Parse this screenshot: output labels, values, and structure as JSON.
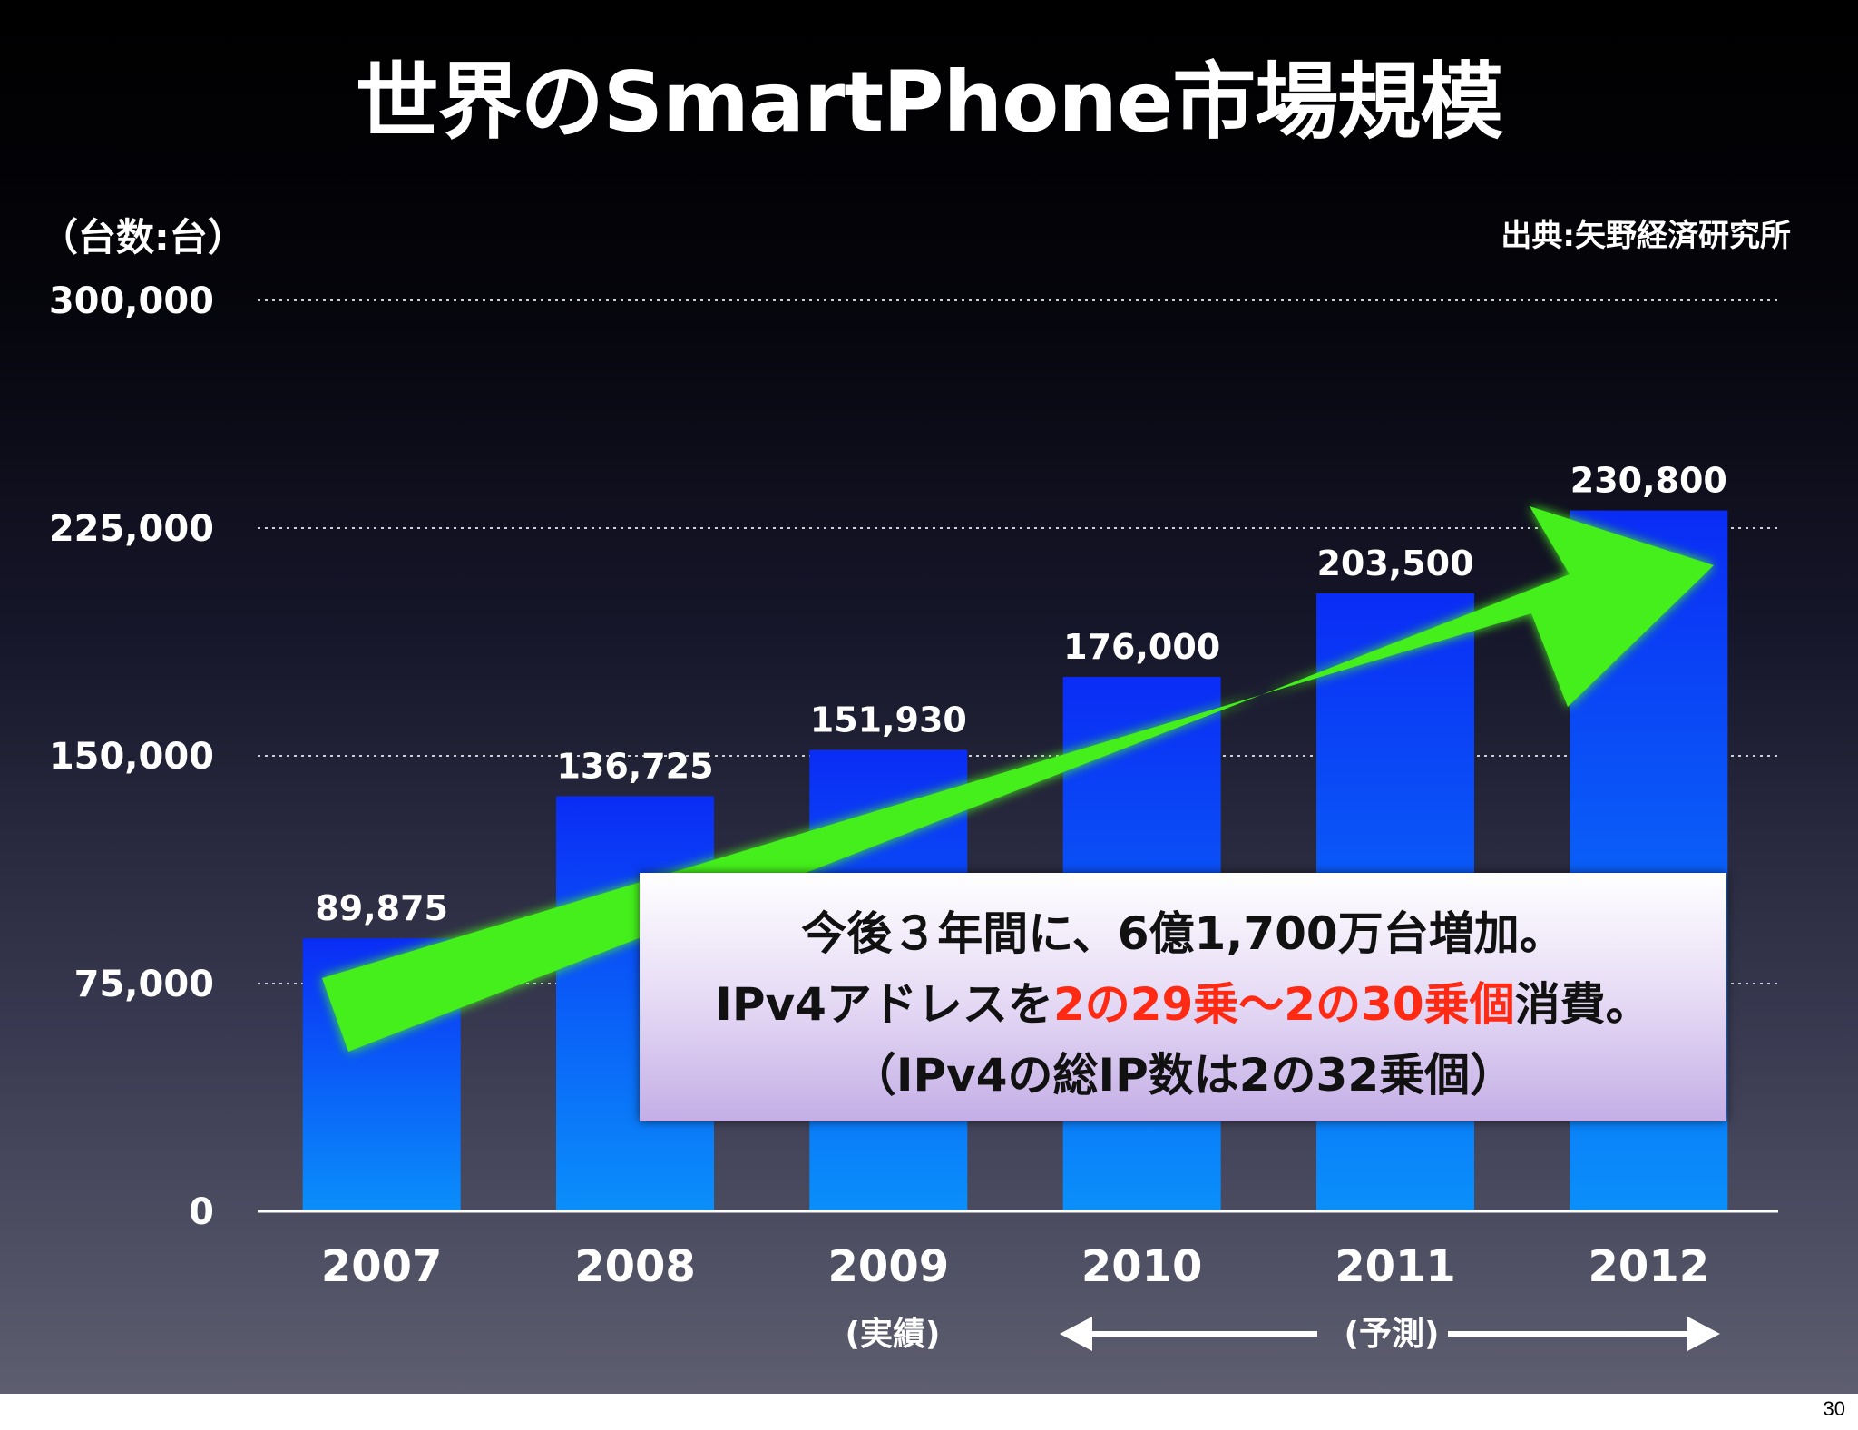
{
  "slide": {
    "title": "世界のSmartPhone市場規模",
    "unit_label": "（台数:台）",
    "source": "出典:矢野経済研究所",
    "page_number": "30"
  },
  "annotations": {
    "actual": "(実績)",
    "forecast": "(予測)"
  },
  "callout": {
    "line1": "今後３年間に、6億1,700万台増加。",
    "line2_pre": "IPv4アドレスを",
    "line2_red": "2の29乗〜2の30乗個",
    "line2_post": "消費。",
    "line3": "（IPv4の総IP数は2の32乗個）"
  },
  "colors": {
    "bar_top": "#0a2cf5",
    "bar_bottom": "#0a8ffa",
    "arrow": "#44ef1c",
    "callout_red": "#ff2a14"
  },
  "chart_data": {
    "type": "bar",
    "categories": [
      "2007",
      "2008",
      "2009",
      "2010",
      "2011",
      "2012"
    ],
    "values": [
      89875,
      136725,
      151930,
      176000,
      203500,
      230800
    ],
    "value_labels": [
      "89,875",
      "136,725",
      "151,930",
      "176,000",
      "203,500",
      "230,800"
    ],
    "y_ticks": [
      0,
      75000,
      150000,
      225000,
      300000
    ],
    "y_tick_labels": [
      "0",
      "75,000",
      "150,000",
      "225,000",
      "300,000"
    ],
    "ylim": [
      0,
      300000
    ],
    "grid": true,
    "title": "世界のSmartPhone市場規模",
    "ylabel": "（台数:台）"
  }
}
